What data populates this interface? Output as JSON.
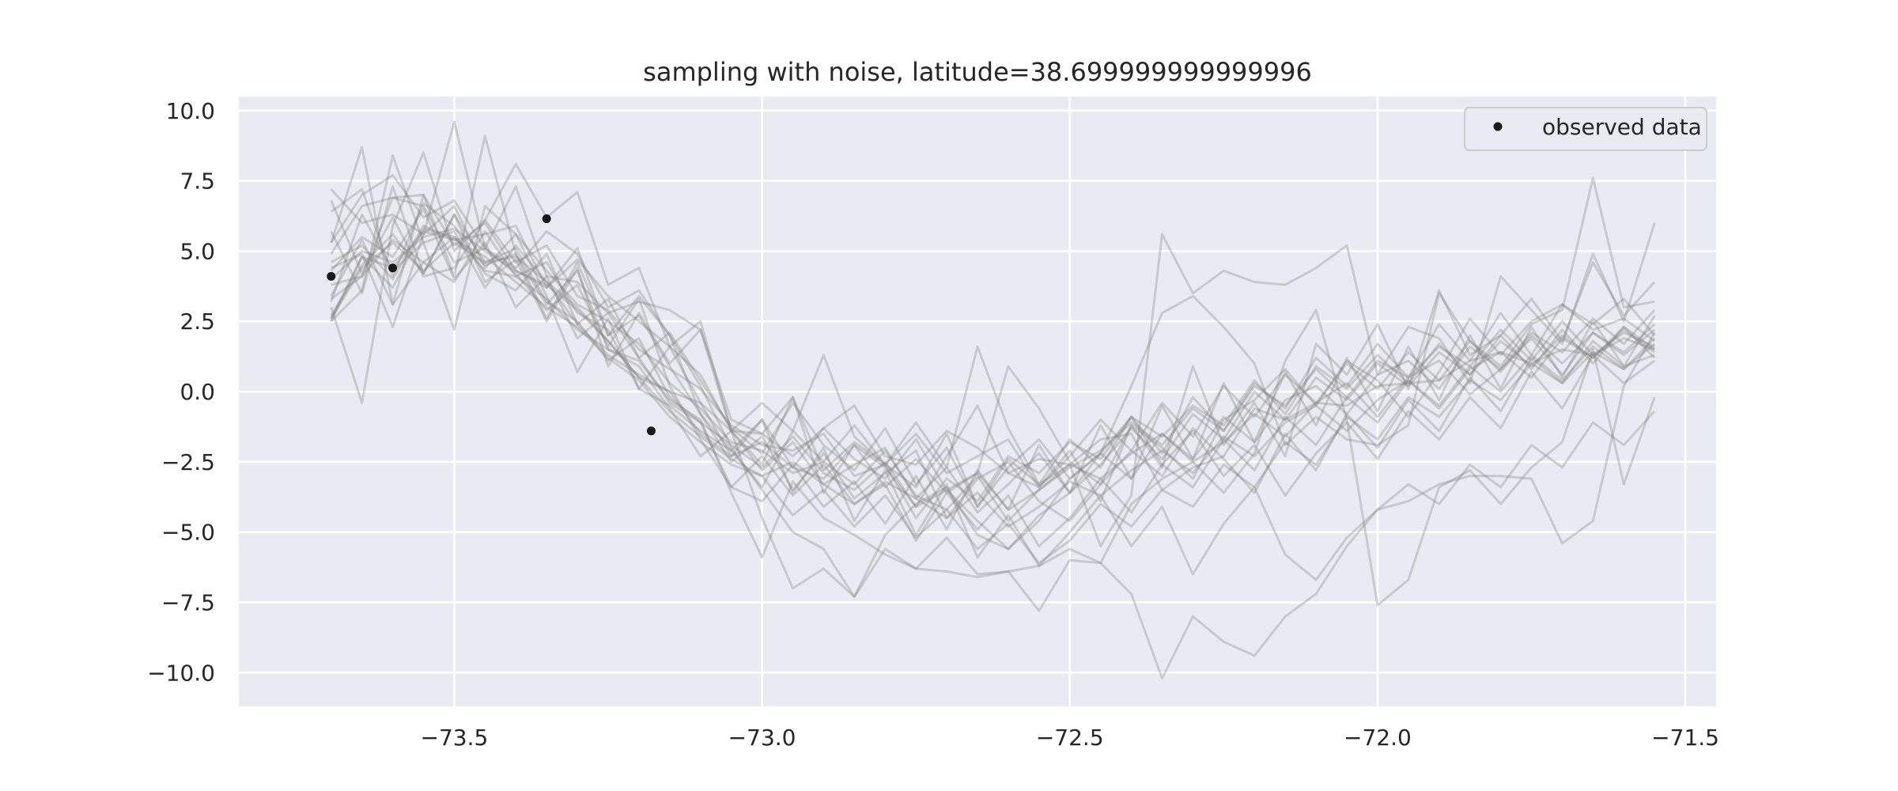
{
  "chart_data": {
    "type": "line",
    "title": "sampling with noise, latitude=38.699999999999996",
    "xlabel": "",
    "ylabel": "",
    "xlim": [
      -73.85,
      -71.45
    ],
    "ylim": [
      -11.2,
      10.5
    ],
    "xticks": [
      -73.5,
      -73.0,
      -72.5,
      -72.0,
      -71.5
    ],
    "xtick_labels": [
      "−73.5",
      "−73.0",
      "−72.5",
      "−72.0",
      "−71.5"
    ],
    "yticks": [
      10.0,
      7.5,
      5.0,
      2.5,
      0.0,
      -2.5,
      -5.0,
      -7.5,
      -10.0
    ],
    "ytick_labels": [
      "10.0",
      "7.5",
      "5.0",
      "2.5",
      "0.0",
      "−2.5",
      "−5.0",
      "−7.5",
      "−10.0"
    ],
    "grid": true,
    "legend_position": "top-right",
    "legend_label": "observed data",
    "colors": {
      "background": "#eaeaf2",
      "grid": "#ffffff",
      "sample_line": "#808080",
      "observed": "#1a1a1a"
    },
    "observed": [
      {
        "x": -73.7,
        "y": 4.1
      },
      {
        "x": -73.6,
        "y": 4.4
      },
      {
        "x": -73.35,
        "y": 6.15
      },
      {
        "x": -73.18,
        "y": -1.4
      }
    ],
    "sample_x": [
      -73.7,
      -73.65,
      -73.6,
      -73.55,
      -73.5,
      -73.45,
      -73.4,
      -73.35,
      -73.3,
      -73.25,
      -73.2,
      -73.15,
      -73.1,
      -73.05,
      -73.0,
      -72.95,
      -72.9,
      -72.85,
      -72.8,
      -72.75,
      -72.7,
      -72.65,
      -72.6,
      -72.55,
      -72.5,
      -72.45,
      -72.4,
      -72.35,
      -72.3,
      -72.25,
      -72.2,
      -72.15,
      -72.1,
      -72.05,
      -72.0,
      -71.95,
      -71.9,
      -71.85,
      -71.8,
      -71.75,
      -71.7,
      -71.65,
      -71.6,
      -71.55
    ],
    "samples": [
      [
        4.0,
        5.0,
        4.6,
        5.5,
        5.8,
        5.0,
        4.3,
        3.8,
        2.9,
        1.8,
        0.5,
        -0.7,
        -1.6,
        -2.4,
        -3.0,
        -2.5,
        -3.3,
        -4.0,
        -3.2,
        -3.8,
        -4.5,
        -3.6,
        -4.8,
        -4.1,
        -3.2,
        -3.7,
        -2.8,
        -2.1,
        -2.9,
        -1.6,
        -2.3,
        -1.1,
        -0.5,
        -1.4,
        -0.3,
        0.4,
        -0.6,
        0.8,
        1.4,
        0.5,
        1.9,
        1.2,
        2.3,
        1.5
      ],
      [
        2.7,
        4.5,
        5.6,
        4.2,
        6.3,
        4.6,
        5.1,
        3.2,
        2.5,
        1.1,
        1.9,
        -0.2,
        -1.1,
        -1.9,
        -2.7,
        -1.6,
        -2.9,
        -3.5,
        -2.5,
        -4.1,
        -3.5,
        -4.6,
        -5.6,
        -4.4,
        -3.6,
        -2.2,
        -3.1,
        -1.5,
        -2.4,
        -0.9,
        -1.8,
        -0.3,
        0.2,
        -0.8,
        0.6,
        1.1,
        0.1,
        1.6,
        0.8,
        2.1,
        1.4,
        2.6,
        1.7,
        2.9
      ],
      [
        5.3,
        8.7,
        3.1,
        7.0,
        4.1,
        9.1,
        4.9,
        2.6,
        4.6,
        2.0,
        2.7,
        0.9,
        -0.8,
        -2.1,
        -1.0,
        -3.6,
        -2.0,
        -4.6,
        -2.8,
        -5.1,
        -3.3,
        -5.9,
        -4.4,
        -6.2,
        -5.0,
        -3.7,
        -5.5,
        -4.1,
        -6.5,
        -4.7,
        -3.4,
        -5.8,
        -6.7,
        -5.2,
        -4.2,
        -3.3,
        -4.0,
        -2.6,
        -3.4,
        -1.9,
        -2.7,
        -1.1,
        -1.9,
        -0.7
      ],
      [
        6.4,
        7.2,
        4.1,
        6.7,
        5.9,
        4.2,
        3.6,
        4.9,
        2.4,
        3.3,
        1.2,
        2.1,
        0.4,
        -1.3,
        -2.2,
        -0.4,
        -1.9,
        -2.8,
        -1.3,
        -3.3,
        -2.0,
        -4.1,
        -2.7,
        -1.7,
        -3.1,
        -2.2,
        -0.9,
        -2.6,
        -1.4,
        -3.0,
        -1.9,
        -3.7,
        -2.2,
        -1.1,
        -2.4,
        -0.7,
        -1.7,
        -0.2,
        -1.3,
        0.7,
        -0.6,
        1.3,
        0.3,
        1.1
      ],
      [
        3.0,
        -0.4,
        5.9,
        8.5,
        5.0,
        6.1,
        8.1,
        6.2,
        7.1,
        3.8,
        4.4,
        1.6,
        2.5,
        -1.4,
        -2.6,
        -0.2,
        -3.6,
        -1.9,
        -2.7,
        -4.1,
        -2.3,
        -0.5,
        -2.9,
        -3.4,
        -2.1,
        -3.9,
        -1.2,
        -2.7,
        0.9,
        -1.9,
        -0.4,
        -2.3,
        1.7,
        0.6,
        2.4,
        0.1,
        3.6,
        1.3,
        2.0,
        3.3,
        1.8,
        4.6,
        2.7,
        3.9
      ],
      [
        4.4,
        4.9,
        2.3,
        5.6,
        6.6,
        4.4,
        5.6,
        4.3,
        3.1,
        2.5,
        1.7,
        0.3,
        -0.6,
        -1.8,
        -2.1,
        -2.9,
        -2.5,
        -3.3,
        -2.1,
        -3.7,
        -4.2,
        -3.0,
        -4.6,
        -3.5,
        -2.7,
        -2.1,
        -1.1,
        -1.9,
        -0.6,
        -1.4,
        0.2,
        -0.5,
        0.8,
        -0.2,
        1.1,
        0.5,
        1.6,
        0.9,
        2.2,
        1.1,
        2.5,
        1.3,
        1.9,
        1.5
      ],
      [
        2.5,
        3.6,
        8.4,
        5.3,
        2.2,
        6.6,
        5.6,
        3.4,
        0.7,
        2.6,
        0.1,
        1.6,
        -0.4,
        -2.3,
        -1.0,
        -2.7,
        -1.3,
        -2.4,
        -3.1,
        -1.7,
        -3.5,
        -2.9,
        0.9,
        -0.6,
        -2.5,
        -3.3,
        -1.2,
        -2.0,
        -3.1,
        -1.0,
        -0.3,
        0.8,
        -0.5,
        1.1,
        0.4,
        -0.9,
        0.7,
        2.6,
        1.3,
        2.5,
        3.1,
        2.4,
        3.3,
        2.0
      ],
      [
        3.2,
        6.3,
        4.3,
        5.3,
        5.7,
        3.7,
        5.2,
        3.9,
        2.4,
        1.3,
        0.6,
        0.0,
        -1.5,
        -2.3,
        -1.8,
        -2.7,
        -3.1,
        -1.9,
        -3.4,
        -2.4,
        -3.6,
        -2.9,
        -4.2,
        -3.5,
        -2.6,
        -3.1,
        -2.2,
        -1.5,
        -2.5,
        -1.8,
        -0.8,
        -1.6,
        -0.4,
        0.3,
        -0.9,
        0.5,
        1.1,
        -0.1,
        0.8,
        1.9,
        0.6,
        2.1,
        1.4,
        2.4
      ],
      [
        6.8,
        4.2,
        6.2,
        4.1,
        4.4,
        6.1,
        4.6,
        5.2,
        3.4,
        2.9,
        1.5,
        0.8,
        0.1,
        -1.2,
        -1.9,
        -2.1,
        -1.5,
        -3.0,
        -2.6,
        -4.5,
        -3.1,
        -3.9,
        -2.3,
        -2.9,
        -1.8,
        -2.4,
        -0.9,
        -1.6,
        -0.5,
        -1.2,
        0.4,
        -0.8,
        0.9,
        0.1,
        1.3,
        0.3,
        1.7,
        0.6,
        2.0,
        0.8,
        2.2,
        1.0,
        2.3,
        1.2
      ],
      [
        3.4,
        5.4,
        3.1,
        4.6,
        5.5,
        4.3,
        4.1,
        4.6,
        2.8,
        2.2,
        0.1,
        -0.5,
        -1.4,
        -2.1,
        -3.4,
        -1.4,
        -2.5,
        -1.2,
        -2.6,
        -3.4,
        -1.5,
        -4.1,
        -2.4,
        -3.3,
        -1.7,
        -2.7,
        -0.9,
        -2.2,
        -0.2,
        -1.4,
        0.3,
        -0.6,
        1.2,
        0.2,
        1.7,
        0.5,
        2.4,
        1.1,
        2.8,
        1.3,
        3.1,
        2.2,
        2.6,
        1.8
      ],
      [
        4.9,
        6.6,
        6.9,
        7.0,
        5.2,
        6.0,
        4.3,
        3.7,
        5.1,
        2.0,
        3.4,
        2.0,
        -0.8,
        -2.5,
        -1.6,
        -3.5,
        -2.2,
        -3.8,
        -2.9,
        -2.1,
        -4.5,
        -3.1,
        -2.5,
        -3.9,
        -4.6,
        -3.3,
        -2.1,
        -3.0,
        -1.3,
        -2.4,
        -3.6,
        -1.5,
        -2.8,
        -0.8,
        -2.0,
        -0.3,
        -1.4,
        0.5,
        -0.7,
        1.2,
        0.3,
        1.8,
        0.9,
        1.3
      ],
      [
        5.7,
        3.5,
        7.3,
        4.2,
        6.3,
        3.9,
        4.7,
        2.5,
        4.4,
        0.9,
        2.8,
        1.0,
        2.2,
        -1.0,
        -1.5,
        -0.2,
        -2.8,
        -1.8,
        -2.6,
        -1.5,
        -2.9,
        -2.3,
        -1.7,
        -3.4,
        -2.3,
        -1.0,
        -2.1,
        -0.4,
        -1.6,
        0.2,
        -0.9,
        0.6,
        -0.4,
        1.0,
        0.1,
        1.4,
        0.4,
        1.8,
        0.7,
        2.0,
        1.0,
        2.1,
        1.3,
        2.2
      ],
      [
        7.2,
        6.0,
        6.3,
        5.6,
        9.6,
        5.1,
        4.2,
        2.9,
        3.8,
        1.6,
        3.3,
        0.2,
        -1.7,
        -3.4,
        -3.9,
        -2.6,
        -4.1,
        -3.2,
        -4.7,
        -3.0,
        -4.9,
        -2.8,
        -4.2,
        -1.9,
        -3.6,
        -1.2,
        -3.1,
        -0.5,
        -2.4,
        0.3,
        -1.8,
        0.7,
        -1.2,
        1.2,
        -0.7,
        1.6,
        -0.3,
        2.0,
        0.1,
        2.3,
        0.5,
        2.5,
        0.9,
        2.7
      ],
      [
        4.3,
        5.5,
        4.8,
        6.5,
        4.0,
        5.3,
        3.0,
        4.1,
        1.9,
        2.8,
        1.2,
        -0.4,
        -1.1,
        -3.4,
        -2.3,
        -3.7,
        -2.6,
        -4.0,
        -3.3,
        -5.3,
        -3.6,
        -4.9,
        -3.7,
        -5.5,
        -4.5,
        -3.1,
        -4.3,
        -2.6,
        -3.4,
        -1.7,
        -2.8,
        -0.9,
        -1.9,
        -0.2,
        -1.1,
        0.4,
        -0.5,
        0.9,
        0.0,
        1.3,
        0.4,
        1.6,
        0.8,
        1.9
      ],
      [
        3.8,
        4.1,
        5.4,
        4.6,
        3.9,
        5.7,
        4.1,
        3.3,
        2.2,
        1.5,
        0.9,
        -0.6,
        -2.3,
        -1.4,
        -2.8,
        -1.8,
        -3.3,
        -2.6,
        -2.0,
        -3.8,
        -2.7,
        -4.3,
        -3.3,
        -2.2,
        -3.6,
        -2.6,
        -1.3,
        -2.4,
        -0.8,
        -1.7,
        0.0,
        -1.0,
        0.5,
        -0.3,
        1.0,
        0.2,
        1.4,
        0.6,
        1.8,
        0.9,
        2.0,
        1.2,
        2.2,
        1.4
      ],
      [
        4.6,
        5.2,
        4.0,
        5.9,
        5.4,
        4.8,
        3.9,
        3.0,
        2.3,
        1.2,
        0.4,
        -0.9,
        -1.8,
        -2.6,
        -3.0,
        -4.4,
        -3.5,
        -4.8,
        -3.7,
        -5.2,
        -4.2,
        -5.6,
        -4.7,
        -6.1,
        -5.3,
        -4.0,
        -4.8,
        -3.5,
        -4.1,
        -2.6,
        -3.4,
        -1.8,
        -2.6,
        -0.9,
        -1.7,
        -0.2,
        -0.9,
        0.4,
        -0.3,
        1.0,
        0.3,
        1.4,
        0.8,
        1.7
      ],
      [
        2.5,
        4.8,
        3.7,
        5.8,
        5.5,
        4.5,
        4.9,
        3.1,
        4.3,
        1.5,
        1.1,
        -0.3,
        -1.0,
        -3.6,
        -5.9,
        -3.2,
        -4.5,
        -5.1,
        -5.8,
        -6.3,
        -5.2,
        -6.5,
        -6.4,
        -6.2,
        -5.6,
        -6.1,
        -7.2,
        -10.2,
        -8.0,
        -8.9,
        -9.4,
        -8.0,
        -7.2,
        -5.5,
        -4.2,
        -3.9,
        -3.3,
        -3.0,
        -3.0,
        -3.1,
        -5.4,
        -4.6,
        0.2,
        2.1
      ],
      [
        2.6,
        4.8,
        4.4,
        5.7,
        5.4,
        5.6,
        5.9,
        3.7,
        4.7,
        3.4,
        2.5,
        1.6,
        0.6,
        -1.4,
        -4.5,
        -7.0,
        -6.3,
        -7.3,
        -5.6,
        -6.3,
        -6.4,
        -6.6,
        -6.4,
        -7.8,
        -6.0,
        -6.1,
        -4.0,
        -3.1,
        -2.5,
        -3.6,
        -2.2,
        1.1,
        2.9,
        -1.0,
        -7.6,
        -6.7,
        -3.4,
        -2.8,
        -4.0,
        -2.7,
        -1.8,
        1.5,
        -3.3,
        -0.2
      ],
      [
        3.3,
        4.1,
        6.9,
        6.6,
        4.6,
        5.1,
        4.4,
        5.7,
        4.9,
        3.0,
        3.6,
        2.0,
        0.2,
        -2.0,
        -3.5,
        -5.0,
        -5.6,
        -7.3,
        -5.1,
        -4.0,
        -3.4,
        -5.1,
        -5.6,
        -4.6,
        -3.1,
        -2.2,
        0.2,
        2.8,
        3.4,
        2.3,
        1.0,
        -1.9,
        -0.9,
        -1.7,
        -1.9,
        -1.2,
        3.5,
        1.8,
        0.9,
        2.4,
        2.9,
        7.6,
        3.0,
        3.2
      ],
      [
        5.3,
        7.0,
        7.7,
        6.2,
        6.8,
        5.1,
        7.3,
        4.1,
        3.9,
        2.8,
        3.2,
        2.9,
        2.2,
        -1.4,
        -0.4,
        -1.4,
        1.3,
        -1.6,
        -2.6,
        -1.1,
        -2.7,
        1.6,
        -1.3,
        -3.3,
        -2.6,
        -5.5,
        -3.7,
        5.6,
        3.5,
        4.3,
        3.9,
        3.8,
        4.4,
        5.2,
        0.6,
        2.3,
        1.9,
        0.3,
        4.1,
        2.9,
        1.7,
        4.9,
        2.5,
        6.0
      ],
      [
        2.6,
        4.4,
        5.3,
        4.3,
        5.3,
        4.6,
        4.8,
        3.9,
        3.0,
        1.8,
        0.5,
        0.0,
        -0.4,
        -1.4,
        -1.5,
        -2.3,
        -1.3,
        -0.5,
        -2.3,
        -2.6,
        -1.4,
        -2.0,
        -2.9,
        -2.4,
        -2.6,
        -1.7,
        -1.5,
        -3.5,
        -2.7,
        -2.3,
        -0.6,
        -1.0,
        -0.4,
        -0.5,
        0.2,
        0.3,
        0.4,
        1.1,
        1.4,
        1.0,
        1.5,
        1.3,
        2.1,
        1.6
      ]
    ]
  }
}
